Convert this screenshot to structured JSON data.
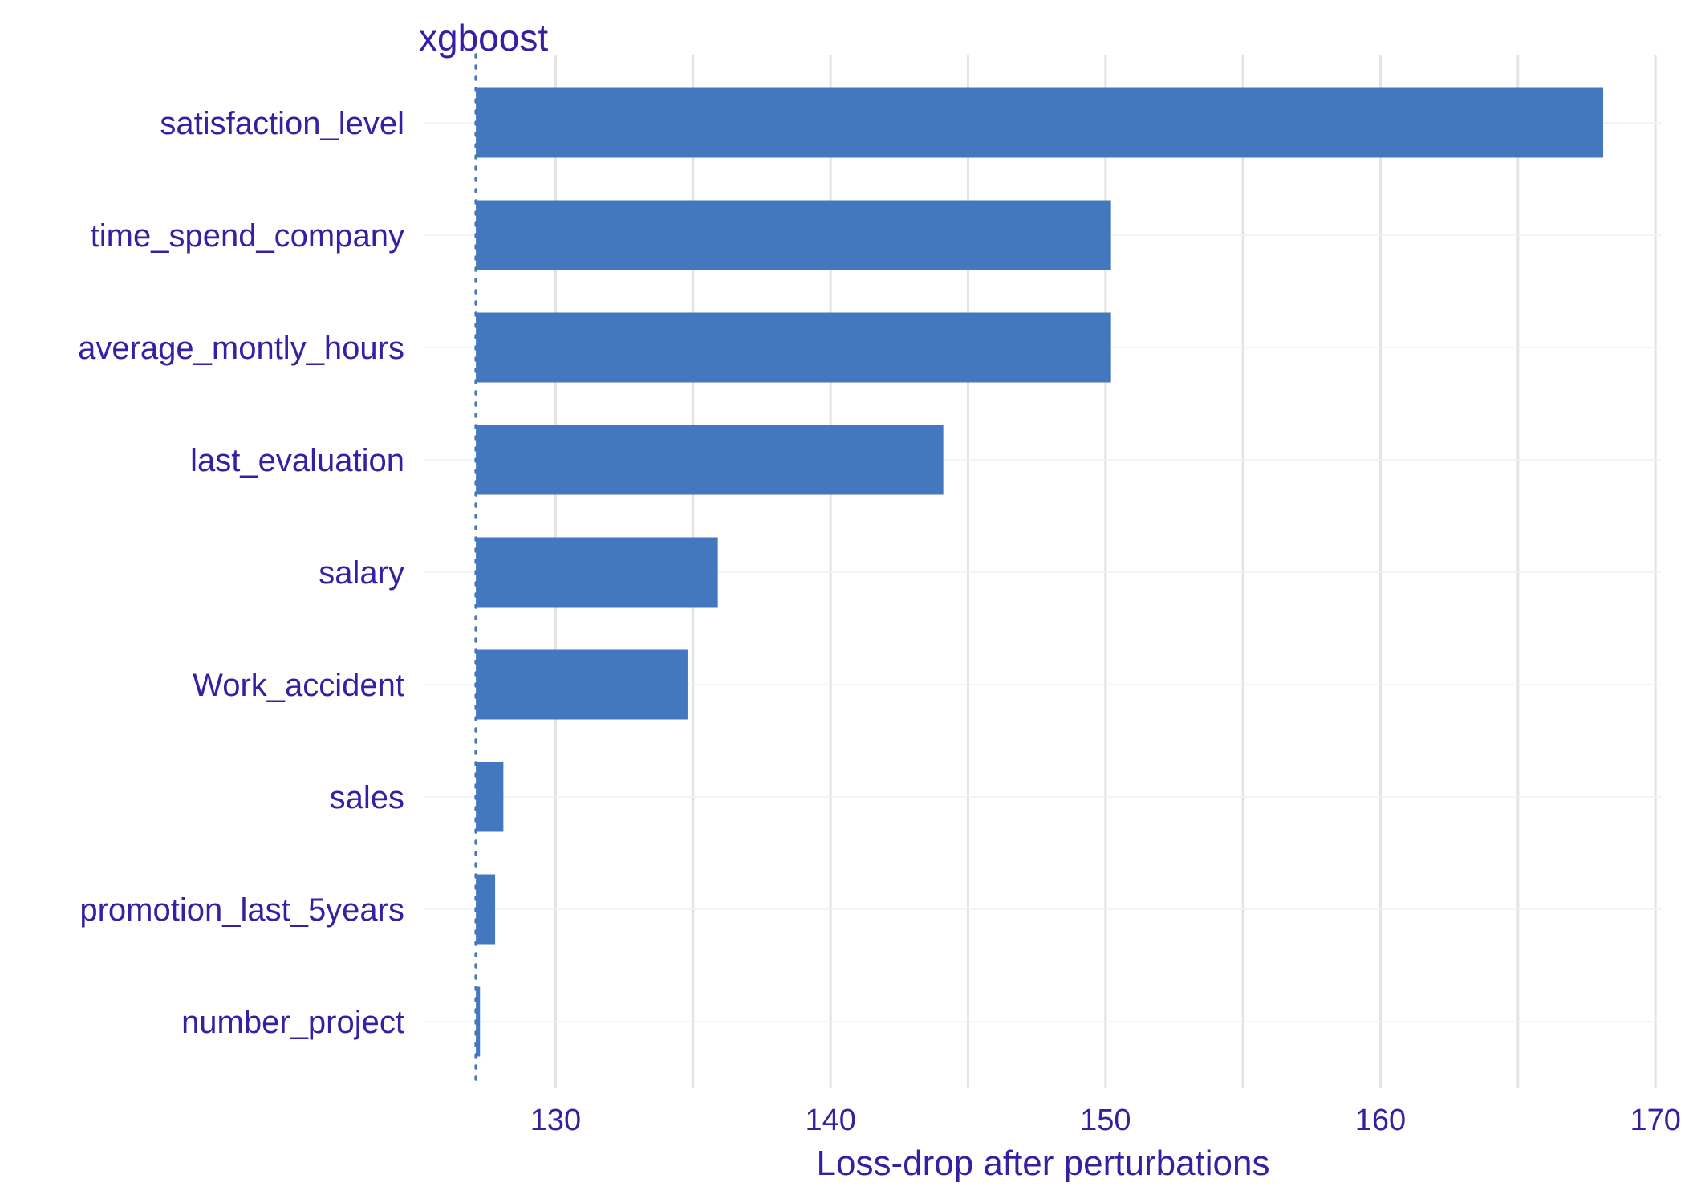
{
  "chart_data": {
    "type": "bar",
    "orientation": "horizontal",
    "title": "xgboost",
    "xlabel": "Loss-drop after perturbations",
    "ylabel": "",
    "baseline": 127.1,
    "xlim": [
      125.2,
      170.2
    ],
    "xticks": [
      130,
      140,
      150,
      160,
      170
    ],
    "categories": [
      "satisfaction_level",
      "time_spend_company",
      "average_montly_hours",
      "last_evaluation",
      "salary",
      "Work_accident",
      "sales",
      "promotion_last_5years",
      "number_project"
    ],
    "values": [
      168.1,
      150.2,
      150.2,
      144.1,
      135.9,
      134.8,
      128.1,
      127.8,
      127.25
    ],
    "bar_color": "#4378bf",
    "text_color": "#371ea3",
    "grid": true
  }
}
